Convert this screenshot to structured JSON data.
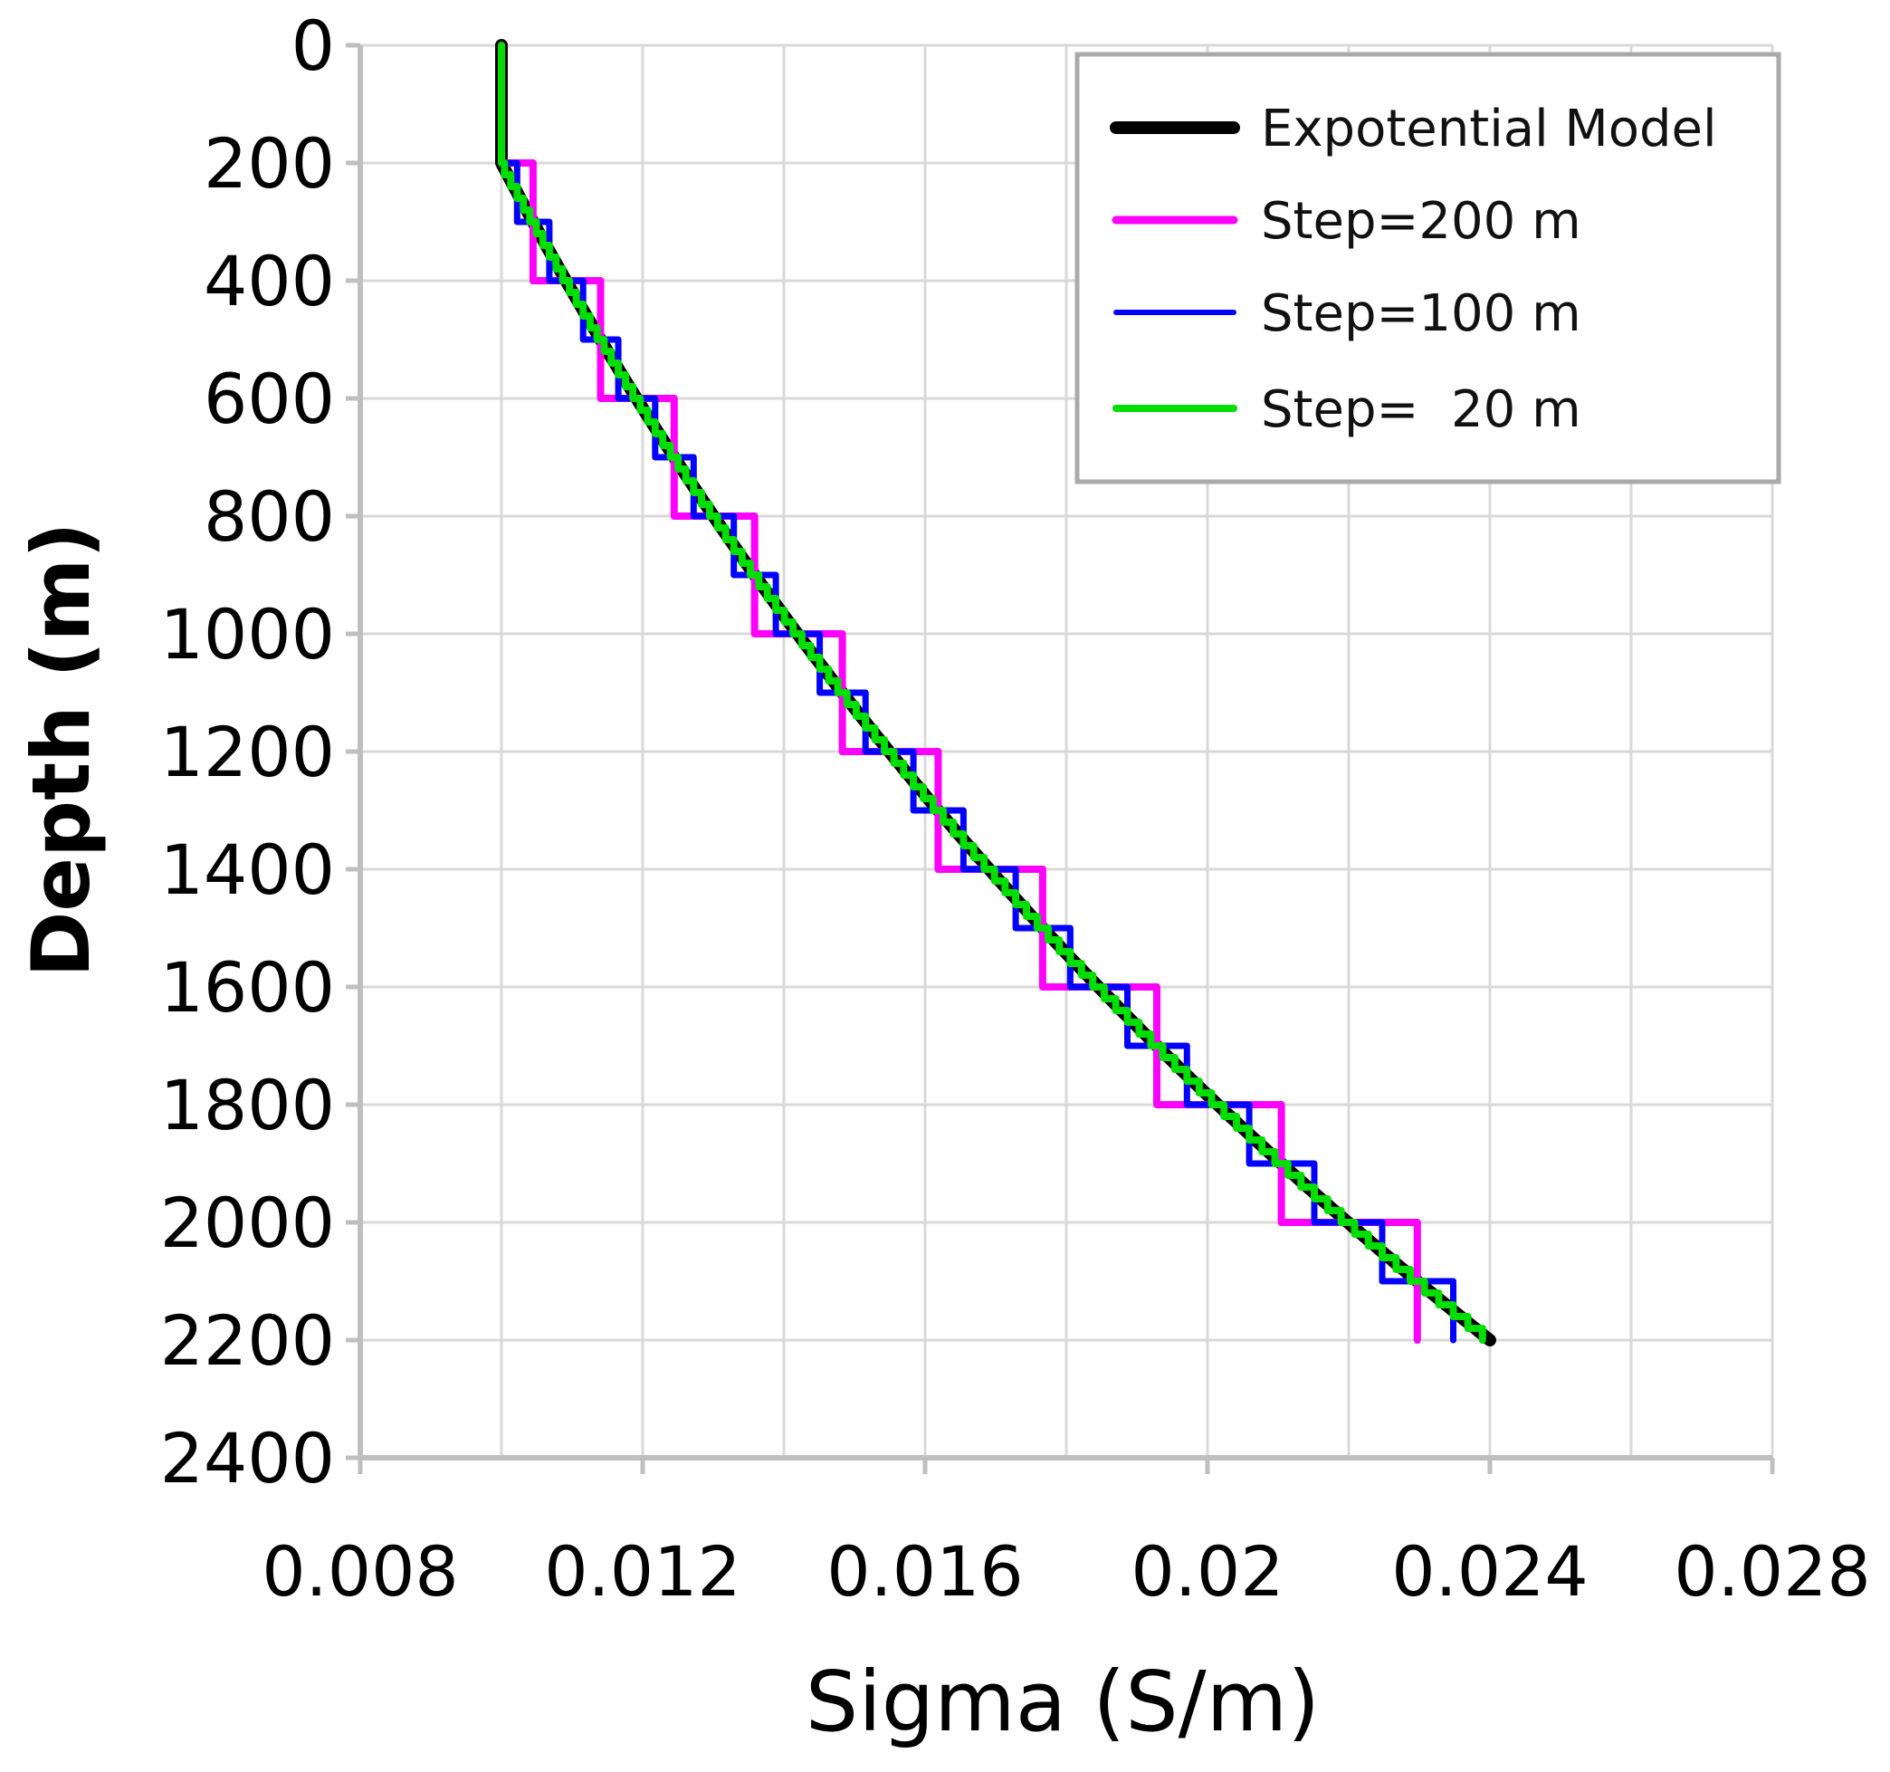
{
  "chart_data": {
    "type": "line",
    "title": "",
    "xlabel": "Sigma (S/m)",
    "ylabel": "Depth (m)",
    "xlim": [
      0.008,
      0.028
    ],
    "ylim": [
      0,
      2400
    ],
    "y_inverted": true,
    "grid": true,
    "x_ticks": [
      0.008,
      0.012,
      0.016,
      0.02,
      0.024,
      0.028
    ],
    "x_tick_labels": [
      "0.008",
      "0.012",
      "0.016",
      "0.02",
      "0.024",
      "0.028"
    ],
    "y_ticks": [
      0,
      200,
      400,
      600,
      800,
      1000,
      1200,
      1400,
      1600,
      1800,
      2000,
      2200,
      2400
    ],
    "y_tick_labels": [
      "0",
      "200",
      "400",
      "600",
      "800",
      "1000",
      "1200",
      "1400",
      "1600",
      "1800",
      "2000",
      "2200",
      "2400"
    ],
    "legend_position": "top-right",
    "model": {
      "surface_sigma": 0.01,
      "surface_depth": 200,
      "bottom_sigma": 0.024,
      "bottom_depth": 2200
    },
    "series": [
      {
        "name": "Expotential Model",
        "color": "#000000",
        "kind": "smooth",
        "step": 5
      },
      {
        "name": "Step=200 m",
        "color": "#ff00ff",
        "kind": "staircase",
        "step": 200
      },
      {
        "name": "Step=100 m",
        "color": "#0000ff",
        "kind": "staircase",
        "step": 100
      },
      {
        "name": "Step=  20 m",
        "color": "#00dd00",
        "kind": "staircase",
        "step": 20
      }
    ]
  }
}
